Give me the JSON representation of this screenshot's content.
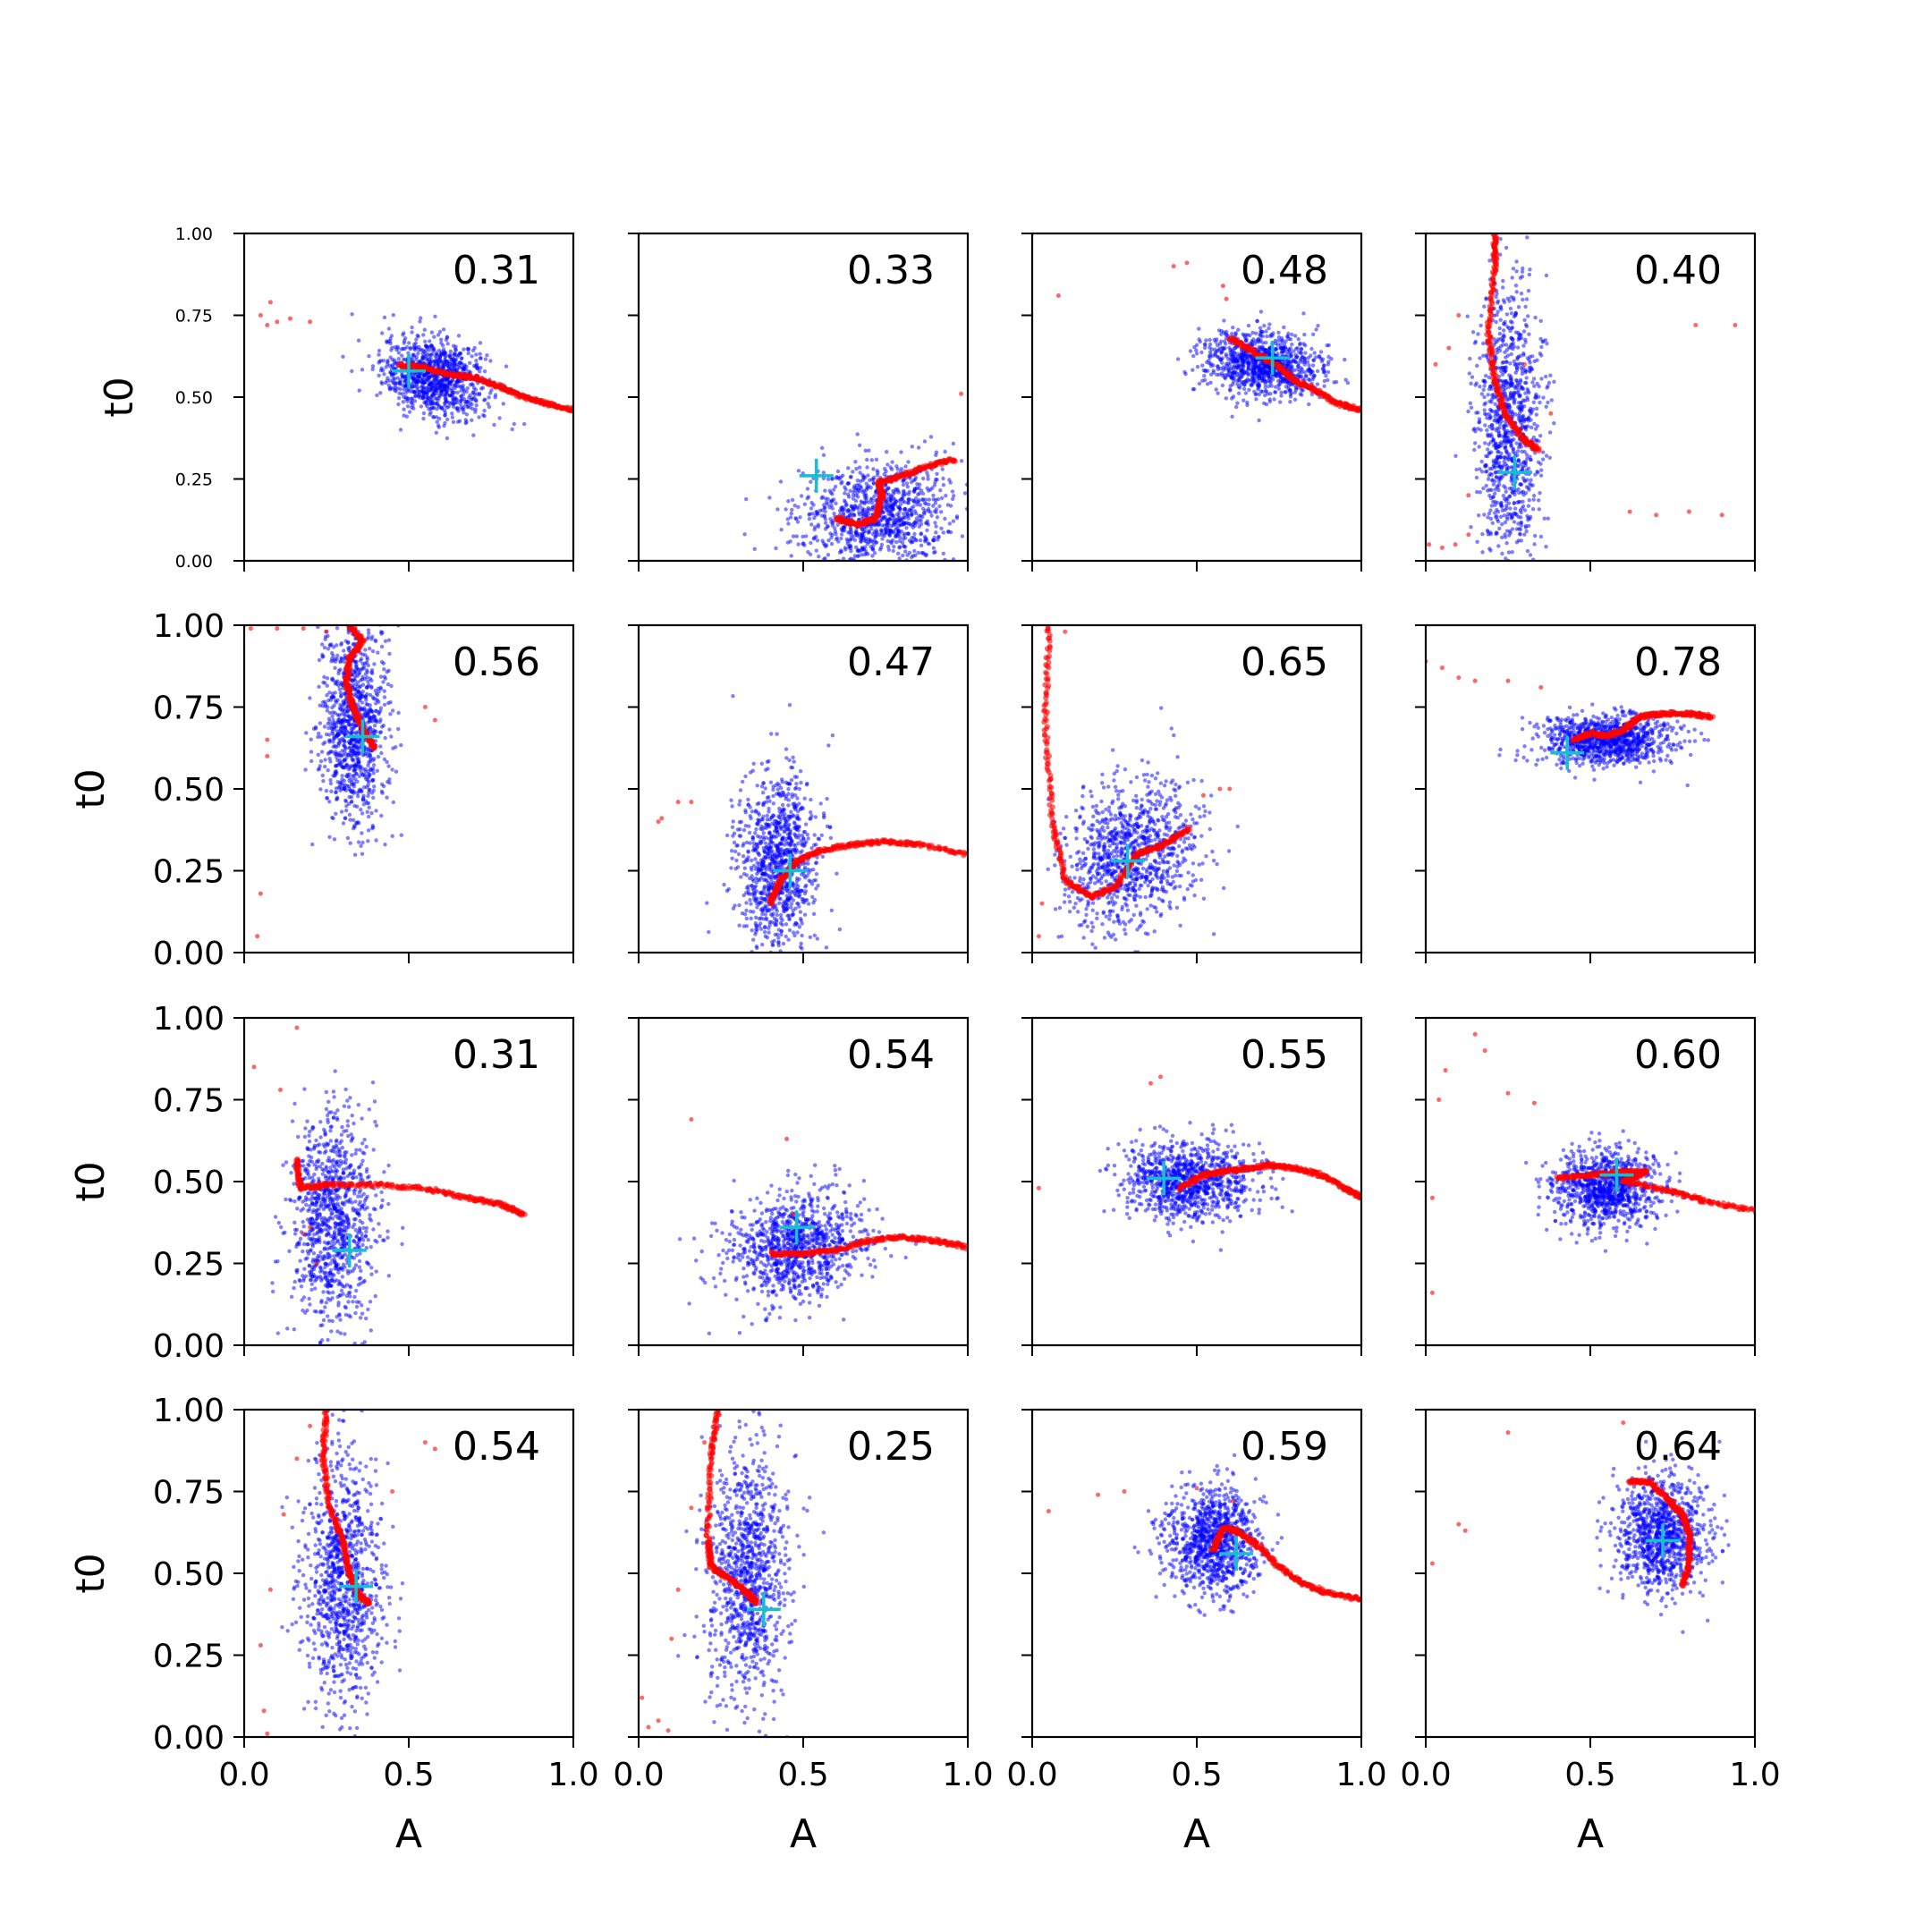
{
  "chart_data": {
    "type": "scatter",
    "rows": 4,
    "cols": 4,
    "xlabel": "A",
    "ylabel": "t0",
    "xlim": [
      0,
      1
    ],
    "ylim": [
      0,
      1
    ],
    "x_ticks": [
      "0.0",
      "0.5",
      "1.0"
    ],
    "y_ticks": [
      "0.00",
      "0.25",
      "0.50",
      "0.75",
      "1.00"
    ],
    "colors": {
      "samples": "#0000ff",
      "trace": "#ff0000",
      "truth": "#17becf"
    },
    "panels": [
      {
        "annotation": "0.31",
        "truth": [
          0.5,
          0.58
        ],
        "cloud": {
          "cx": 0.58,
          "cy": 0.56,
          "sx": 0.08,
          "sy": 0.06,
          "rho": -0.2
        },
        "trace": [
          [
            0.47,
            0.6
          ],
          [
            0.55,
            0.59
          ],
          [
            0.62,
            0.57
          ],
          [
            0.7,
            0.56
          ],
          [
            0.78,
            0.53
          ],
          [
            0.85,
            0.5
          ],
          [
            0.92,
            0.48
          ],
          [
            1.0,
            0.46
          ]
        ],
        "strays": [
          [
            0.05,
            0.75
          ],
          [
            0.08,
            0.79
          ],
          [
            0.1,
            0.73
          ],
          [
            0.14,
            0.74
          ],
          [
            0.2,
            0.73
          ],
          [
            0.07,
            0.72
          ]
        ]
      },
      {
        "annotation": "0.33",
        "truth": [
          0.54,
          0.26
        ],
        "cloud": {
          "cx": 0.72,
          "cy": 0.14,
          "sx": 0.12,
          "sy": 0.08,
          "rho": 0.1
        },
        "trace": [
          [
            0.6,
            0.13
          ],
          [
            0.66,
            0.11
          ],
          [
            0.72,
            0.13
          ],
          [
            0.74,
            0.2
          ],
          [
            0.73,
            0.24
          ],
          [
            0.8,
            0.26
          ],
          [
            0.88,
            0.29
          ],
          [
            0.96,
            0.31
          ]
        ],
        "strays": [
          [
            0.98,
            0.51
          ]
        ]
      },
      {
        "annotation": "0.48",
        "truth": [
          0.73,
          0.62
        ],
        "cloud": {
          "cx": 0.7,
          "cy": 0.6,
          "sx": 0.09,
          "sy": 0.05,
          "rho": -0.1
        },
        "trace": [
          [
            0.6,
            0.68
          ],
          [
            0.67,
            0.64
          ],
          [
            0.74,
            0.6
          ],
          [
            0.8,
            0.55
          ],
          [
            0.86,
            0.52
          ],
          [
            0.93,
            0.48
          ],
          [
            1.0,
            0.46
          ]
        ],
        "strays": [
          [
            0.43,
            0.9
          ],
          [
            0.47,
            0.91
          ],
          [
            0.08,
            0.81
          ],
          [
            0.59,
            0.8
          ],
          [
            0.58,
            0.84
          ]
        ]
      },
      {
        "annotation": "0.40",
        "truth": [
          0.27,
          0.27
        ],
        "cloud": {
          "cx": 0.25,
          "cy": 0.4,
          "sx": 0.05,
          "sy": 0.22,
          "rho": 0.0
        },
        "trace": [
          [
            0.21,
            1.0
          ],
          [
            0.21,
            0.9
          ],
          [
            0.19,
            0.7
          ],
          [
            0.21,
            0.55
          ],
          [
            0.24,
            0.45
          ],
          [
            0.3,
            0.37
          ],
          [
            0.34,
            0.34
          ]
        ],
        "strays": [
          [
            0.01,
            0.05
          ],
          [
            0.05,
            0.04
          ],
          [
            0.09,
            0.05
          ],
          [
            0.13,
            0.08
          ],
          [
            0.13,
            0.2
          ],
          [
            0.03,
            0.6
          ],
          [
            0.07,
            0.65
          ],
          [
            0.1,
            0.75
          ],
          [
            0.3,
            0.6
          ],
          [
            0.38,
            0.45
          ],
          [
            0.62,
            0.15
          ],
          [
            0.7,
            0.14
          ],
          [
            0.8,
            0.15
          ],
          [
            0.9,
            0.14
          ],
          [
            0.94,
            0.72
          ],
          [
            0.82,
            0.72
          ]
        ]
      },
      {
        "annotation": "0.56",
        "truth": [
          0.36,
          0.66
        ],
        "cloud": {
          "cx": 0.33,
          "cy": 0.7,
          "sx": 0.05,
          "sy": 0.16,
          "rho": 0.0
        },
        "trace": [
          [
            0.32,
            1.0
          ],
          [
            0.36,
            0.95
          ],
          [
            0.32,
            0.9
          ],
          [
            0.31,
            0.82
          ],
          [
            0.33,
            0.75
          ],
          [
            0.36,
            0.68
          ],
          [
            0.4,
            0.62
          ]
        ],
        "strays": [
          [
            0.02,
            0.99
          ],
          [
            0.1,
            0.99
          ],
          [
            0.18,
            0.99
          ],
          [
            0.25,
            0.98
          ],
          [
            0.05,
            0.18
          ],
          [
            0.04,
            0.05
          ],
          [
            0.07,
            0.65
          ],
          [
            0.07,
            0.6
          ],
          [
            0.55,
            0.75
          ],
          [
            0.58,
            0.71
          ]
        ]
      },
      {
        "annotation": "0.47",
        "truth": [
          0.46,
          0.25
        ],
        "cloud": {
          "cx": 0.42,
          "cy": 0.28,
          "sx": 0.06,
          "sy": 0.14,
          "rho": 0.0
        },
        "trace": [
          [
            0.4,
            0.15
          ],
          [
            0.43,
            0.22
          ],
          [
            0.48,
            0.28
          ],
          [
            0.55,
            0.31
          ],
          [
            0.65,
            0.33
          ],
          [
            0.75,
            0.34
          ],
          [
            0.85,
            0.33
          ],
          [
            1.0,
            0.3
          ]
        ],
        "strays": [
          [
            0.06,
            0.4
          ],
          [
            0.07,
            0.41
          ],
          [
            0.12,
            0.46
          ],
          [
            0.16,
            0.46
          ]
        ]
      },
      {
        "annotation": "0.65",
        "truth": [
          0.29,
          0.28
        ],
        "cloud": {
          "cx": 0.3,
          "cy": 0.3,
          "sx": 0.1,
          "sy": 0.11,
          "rho": 0.2
        },
        "trace": [
          [
            0.05,
            1.0
          ],
          [
            0.04,
            0.7
          ],
          [
            0.06,
            0.4
          ],
          [
            0.1,
            0.22
          ],
          [
            0.18,
            0.17
          ],
          [
            0.25,
            0.2
          ],
          [
            0.32,
            0.3
          ],
          [
            0.4,
            0.33
          ],
          [
            0.48,
            0.38
          ]
        ],
        "strays": [
          [
            0.02,
            0.05
          ],
          [
            0.03,
            0.15
          ],
          [
            0.57,
            0.5
          ],
          [
            0.52,
            0.48
          ],
          [
            0.6,
            0.5
          ],
          [
            0.1,
            0.98
          ]
        ]
      },
      {
        "annotation": "0.78",
        "truth": [
          0.43,
          0.61
        ],
        "cloud": {
          "cx": 0.55,
          "cy": 0.65,
          "sx": 0.1,
          "sy": 0.04,
          "rho": 0.0
        },
        "trace": [
          [
            0.45,
            0.65
          ],
          [
            0.5,
            0.67
          ],
          [
            0.55,
            0.66
          ],
          [
            0.6,
            0.68
          ],
          [
            0.65,
            0.72
          ],
          [
            0.72,
            0.73
          ],
          [
            0.8,
            0.73
          ],
          [
            0.87,
            0.72
          ]
        ],
        "strays": [
          [
            0.0,
            0.89
          ],
          [
            0.05,
            0.87
          ],
          [
            0.1,
            0.84
          ],
          [
            0.15,
            0.83
          ],
          [
            0.25,
            0.83
          ],
          [
            0.35,
            0.81
          ]
        ]
      },
      {
        "annotation": "0.31",
        "truth": [
          0.32,
          0.29
        ],
        "cloud": {
          "cx": 0.27,
          "cy": 0.38,
          "sx": 0.06,
          "sy": 0.17,
          "rho": 0.0
        },
        "trace": [
          [
            0.16,
            0.57
          ],
          [
            0.17,
            0.48
          ],
          [
            0.25,
            0.49
          ],
          [
            0.4,
            0.49
          ],
          [
            0.55,
            0.48
          ],
          [
            0.68,
            0.45
          ],
          [
            0.78,
            0.43
          ],
          [
            0.85,
            0.4
          ]
        ],
        "strays": [
          [
            0.03,
            0.85
          ],
          [
            0.11,
            0.78
          ],
          [
            0.16,
            0.97
          ],
          [
            0.18,
            0.34
          ],
          [
            0.2,
            0.36
          ],
          [
            0.22,
            0.25
          ]
        ]
      },
      {
        "annotation": "0.54",
        "truth": [
          0.48,
          0.36
        ],
        "cloud": {
          "cx": 0.48,
          "cy": 0.3,
          "sx": 0.1,
          "sy": 0.08,
          "rho": 0.1
        },
        "trace": [
          [
            0.4,
            0.28
          ],
          [
            0.5,
            0.28
          ],
          [
            0.6,
            0.29
          ],
          [
            0.7,
            0.32
          ],
          [
            0.8,
            0.33
          ],
          [
            0.9,
            0.32
          ],
          [
            1.0,
            0.3
          ]
        ],
        "strays": [
          [
            0.16,
            0.69
          ],
          [
            0.45,
            0.63
          ],
          [
            0.47,
            0.4
          ]
        ]
      },
      {
        "annotation": "0.55",
        "truth": [
          0.4,
          0.51
        ],
        "cloud": {
          "cx": 0.48,
          "cy": 0.5,
          "sx": 0.1,
          "sy": 0.06,
          "rho": 0.0
        },
        "trace": [
          [
            0.45,
            0.48
          ],
          [
            0.52,
            0.52
          ],
          [
            0.58,
            0.53
          ],
          [
            0.65,
            0.54
          ],
          [
            0.72,
            0.55
          ],
          [
            0.8,
            0.54
          ],
          [
            0.88,
            0.52
          ],
          [
            0.95,
            0.48
          ],
          [
            1.0,
            0.45
          ]
        ],
        "strays": [
          [
            0.02,
            0.48
          ],
          [
            0.36,
            0.8
          ],
          [
            0.39,
            0.82
          ]
        ]
      },
      {
        "annotation": "0.60",
        "truth": [
          0.58,
          0.52
        ],
        "cloud": {
          "cx": 0.55,
          "cy": 0.48,
          "sx": 0.08,
          "sy": 0.06,
          "rho": 0.0
        },
        "trace": [
          [
            0.4,
            0.51
          ],
          [
            0.5,
            0.52
          ],
          [
            0.6,
            0.53
          ],
          [
            0.67,
            0.53
          ],
          [
            0.6,
            0.5
          ],
          [
            0.75,
            0.47
          ],
          [
            0.85,
            0.44
          ],
          [
            1.0,
            0.41
          ]
        ],
        "strays": [
          [
            0.02,
            0.16
          ],
          [
            0.02,
            0.45
          ],
          [
            0.04,
            0.75
          ],
          [
            0.06,
            0.84
          ],
          [
            0.15,
            0.95
          ],
          [
            0.18,
            0.9
          ],
          [
            0.25,
            0.77
          ],
          [
            0.33,
            0.74
          ]
        ]
      },
      {
        "annotation": "0.54",
        "truth": [
          0.34,
          0.46
        ],
        "cloud": {
          "cx": 0.3,
          "cy": 0.48,
          "sx": 0.06,
          "sy": 0.19,
          "rho": 0.0
        },
        "trace": [
          [
            0.25,
            1.0
          ],
          [
            0.24,
            0.85
          ],
          [
            0.26,
            0.7
          ],
          [
            0.3,
            0.6
          ],
          [
            0.32,
            0.5
          ],
          [
            0.35,
            0.43
          ],
          [
            0.38,
            0.41
          ]
        ],
        "strays": [
          [
            0.07,
            0.01
          ],
          [
            0.06,
            0.08
          ],
          [
            0.05,
            0.28
          ],
          [
            0.08,
            0.45
          ],
          [
            0.12,
            0.68
          ],
          [
            0.16,
            0.85
          ],
          [
            0.2,
            0.95
          ],
          [
            0.45,
            0.75
          ],
          [
            0.55,
            0.9
          ],
          [
            0.58,
            0.88
          ]
        ]
      },
      {
        "annotation": "0.25",
        "truth": [
          0.38,
          0.39
        ],
        "cloud": {
          "cx": 0.33,
          "cy": 0.5,
          "sx": 0.06,
          "sy": 0.19,
          "rho": 0.0
        },
        "trace": [
          [
            0.24,
            1.0
          ],
          [
            0.22,
            0.85
          ],
          [
            0.21,
            0.6
          ],
          [
            0.22,
            0.52
          ],
          [
            0.28,
            0.48
          ],
          [
            0.33,
            0.44
          ],
          [
            0.36,
            0.41
          ]
        ],
        "strays": [
          [
            0.01,
            0.12
          ],
          [
            0.03,
            0.03
          ],
          [
            0.06,
            0.05
          ],
          [
            0.09,
            0.02
          ],
          [
            0.1,
            0.3
          ],
          [
            0.12,
            0.45
          ],
          [
            0.16,
            0.7
          ],
          [
            0.2,
            0.9
          ]
        ]
      },
      {
        "annotation": "0.59",
        "truth": [
          0.62,
          0.56
        ],
        "cloud": {
          "cx": 0.55,
          "cy": 0.6,
          "sx": 0.07,
          "sy": 0.08,
          "rho": 0.0
        },
        "trace": [
          [
            0.55,
            0.57
          ],
          [
            0.58,
            0.64
          ],
          [
            0.62,
            0.63
          ],
          [
            0.68,
            0.59
          ],
          [
            0.75,
            0.52
          ],
          [
            0.82,
            0.47
          ],
          [
            0.9,
            0.44
          ],
          [
            1.0,
            0.42
          ]
        ],
        "strays": [
          [
            0.05,
            0.69
          ],
          [
            0.2,
            0.74
          ],
          [
            0.28,
            0.75
          ],
          [
            0.5,
            0.76
          ],
          [
            0.61,
            0.72
          ]
        ]
      },
      {
        "annotation": "0.64",
        "truth": [
          0.72,
          0.6
        ],
        "cloud": {
          "cx": 0.72,
          "cy": 0.62,
          "sx": 0.07,
          "sy": 0.09,
          "rho": 0.0
        },
        "trace": [
          [
            0.62,
            0.78
          ],
          [
            0.68,
            0.78
          ],
          [
            0.74,
            0.72
          ],
          [
            0.78,
            0.68
          ],
          [
            0.8,
            0.62
          ],
          [
            0.8,
            0.53
          ],
          [
            0.78,
            0.46
          ]
        ],
        "strays": [
          [
            0.02,
            0.53
          ],
          [
            0.1,
            0.65
          ],
          [
            0.12,
            0.63
          ],
          [
            0.25,
            0.93
          ],
          [
            0.6,
            0.96
          ]
        ]
      }
    ]
  }
}
